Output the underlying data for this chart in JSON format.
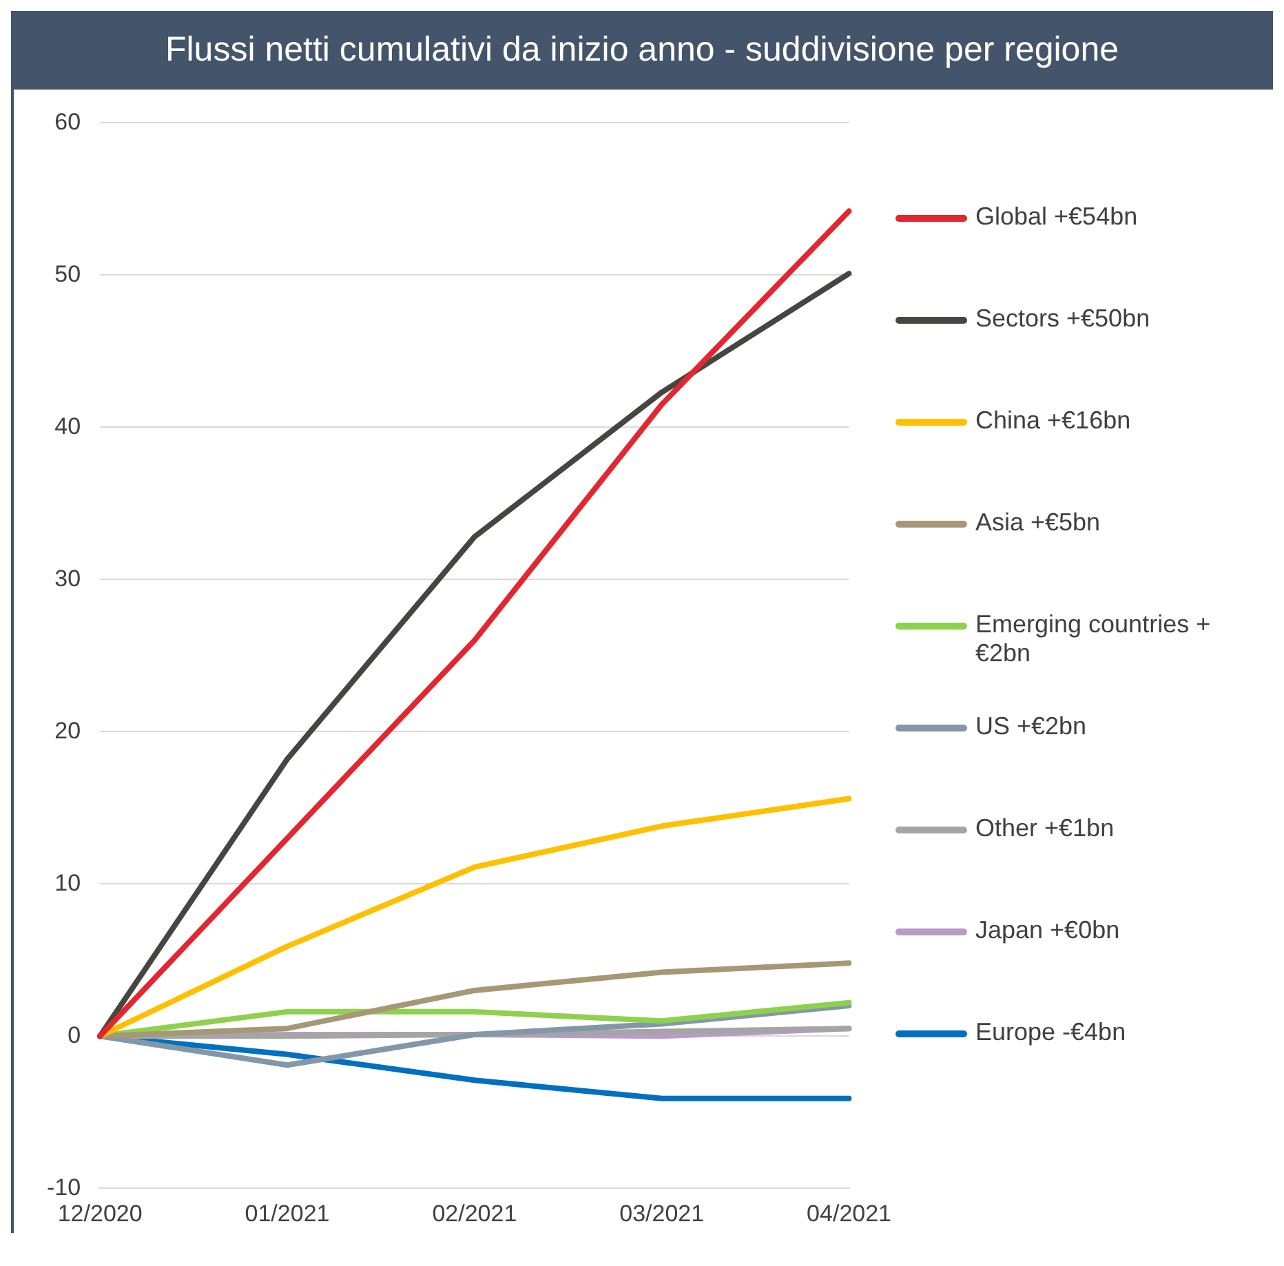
{
  "chart_data": {
    "type": "line",
    "title": "Flussi netti cumulativi da inizio anno - suddivisione per regione",
    "categories": [
      "12/2020",
      "01/2021",
      "02/2021",
      "03/2021",
      "04/2021"
    ],
    "series": [
      {
        "name": "Global +€54bn",
        "color": "#e3262f",
        "values": [
          0,
          13,
          26,
          41.5,
          54.2
        ]
      },
      {
        "name": "Sectors +€50bn",
        "color": "#44463f",
        "values": [
          0,
          18.2,
          32.8,
          42.3,
          50.1
        ]
      },
      {
        "name": "China +€16bn",
        "color": "#ffc000",
        "values": [
          0,
          5.9,
          11.1,
          13.8,
          15.6
        ]
      },
      {
        "name": "Asia +€5bn",
        "color": "#a69876",
        "values": [
          0,
          0.5,
          3.0,
          4.2,
          4.8
        ]
      },
      {
        "name": "Emerging countries +€2bn",
        "color": "#8fd14f",
        "values": [
          0,
          1.6,
          1.6,
          1.0,
          2.2
        ]
      },
      {
        "name": "US +€2bn",
        "color": "#8497a8",
        "values": [
          0,
          -1.9,
          0.1,
          0.8,
          2.0
        ]
      },
      {
        "name": "Other +€1bn",
        "color": "#a5a5a5",
        "values": [
          0,
          0,
          0.1,
          0.3,
          0.5
        ]
      },
      {
        "name": "Japan +€0bn",
        "color": "#b99bc8",
        "values": [
          0,
          0.1,
          0.1,
          0.0,
          0.5
        ]
      },
      {
        "name": "Europe -€4bn",
        "color": "#0070c0",
        "values": [
          0,
          -1.2,
          -2.9,
          -4.1,
          -4.1
        ]
      }
    ],
    "ylim": [
      -10,
      60
    ],
    "yticks": [
      -10,
      0,
      10,
      20,
      30,
      40,
      50,
      60
    ],
    "grid": "y",
    "legend": "right",
    "marker": "none",
    "line_style": "solid"
  }
}
